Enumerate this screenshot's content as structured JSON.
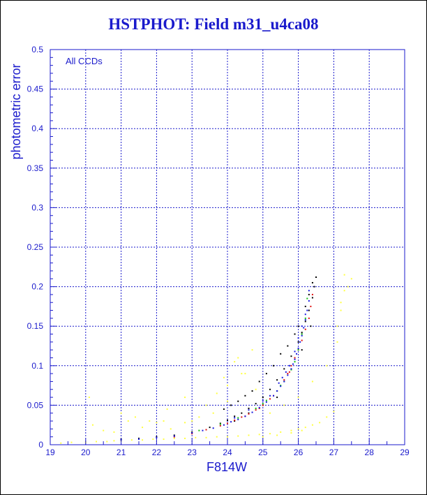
{
  "title": "HSTPHOT: Field m31_u4ca08",
  "colors": {
    "axis": "#1a1acc",
    "grid": "#1a1acc",
    "frame": "#000000",
    "black": "#000000",
    "red": "#e01010",
    "green": "#10c010",
    "blue": "#1818e0",
    "yellow": "#ffff40"
  },
  "chart_data": {
    "type": "scatter",
    "title": "HSTPHOT: Field m31_u4ca08",
    "xlabel": "F814W",
    "ylabel": "photometric error",
    "xlim": [
      19,
      29
    ],
    "ylim": [
      0,
      0.5
    ],
    "xticks": [
      "19",
      "20",
      "21",
      "22",
      "23",
      "24",
      "25",
      "26",
      "27",
      "28",
      "29"
    ],
    "yticks": [
      "0",
      "0.05",
      "0.1",
      "0.15",
      "0.2",
      "0.25",
      "0.3",
      "0.35",
      "0.4",
      "0.45",
      "0.5"
    ],
    "grid": true,
    "annotation": "All CCDs",
    "series": [
      {
        "color": "yellow",
        "x": [
          19.3,
          19.6,
          20.0,
          20.3,
          20.6,
          20.8,
          21.0,
          21.3,
          21.6,
          21.9,
          22.2,
          22.5,
          22.8,
          23.1,
          23.4,
          23.7,
          24.0,
          24.3,
          24.6,
          24.9,
          25.2,
          25.5,
          25.8,
          26.0,
          26.2,
          26.4,
          26.6,
          26.8,
          27.0,
          20.2,
          20.5,
          20.8,
          21.2,
          21.6,
          22.0,
          22.4,
          22.8,
          23.2,
          23.6,
          24.0,
          24.4,
          24.8,
          25.2,
          25.6,
          26.0,
          26.4,
          26.8,
          27.1,
          27.2,
          27.3,
          27.3,
          27.4,
          27.2,
          27.1,
          21.0,
          21.4,
          21.8,
          22.3,
          22.8,
          23.4,
          23.9,
          24.2,
          24.5,
          24.7,
          23.7,
          24.0,
          25.0,
          25.4,
          25.8,
          26.1,
          20.1,
          22.2,
          23.0,
          24.3,
          27.5
        ],
        "y": [
          0.002,
          0.003,
          0.003,
          0.004,
          0.004,
          0.005,
          0.005,
          0.006,
          0.006,
          0.007,
          0.007,
          0.008,
          0.008,
          0.009,
          0.009,
          0.01,
          0.01,
          0.011,
          0.012,
          0.013,
          0.014,
          0.016,
          0.018,
          0.02,
          0.022,
          0.025,
          0.028,
          0.035,
          0.042,
          0.025,
          0.018,
          0.016,
          0.03,
          0.022,
          0.028,
          0.02,
          0.028,
          0.035,
          0.04,
          0.075,
          0.09,
          0.07,
          0.04,
          0.05,
          0.06,
          0.08,
          0.1,
          0.15,
          0.18,
          0.195,
          0.215,
          0.2,
          0.17,
          0.13,
          0.04,
          0.035,
          0.03,
          0.045,
          0.06,
          0.05,
          0.085,
          0.105,
          0.09,
          0.12,
          0.065,
          0.055,
          0.01,
          0.012,
          0.015,
          0.018,
          0.06,
          0.03,
          0.03,
          0.11,
          0.21
        ]
      },
      {
        "color": "black",
        "x": [
          21.0,
          21.5,
          22.0,
          22.5,
          23.0,
          23.5,
          23.8,
          24.0,
          24.2,
          24.4,
          24.6,
          24.8,
          25.0,
          25.2,
          25.4,
          25.6,
          25.8,
          26.0,
          26.1,
          26.2,
          26.3,
          26.4,
          26.45,
          26.5,
          23.9,
          24.1,
          24.3,
          24.5,
          24.7,
          24.9,
          25.1,
          25.3,
          25.5,
          25.7,
          25.9,
          26.0,
          26.2,
          26.3,
          26.4,
          24.2,
          24.6,
          25.0,
          25.4,
          25.8,
          26.1,
          26.35
        ],
        "y": [
          0.007,
          0.008,
          0.01,
          0.012,
          0.016,
          0.022,
          0.027,
          0.031,
          0.036,
          0.04,
          0.046,
          0.052,
          0.06,
          0.07,
          0.082,
          0.096,
          0.112,
          0.13,
          0.142,
          0.156,
          0.17,
          0.186,
          0.2,
          0.212,
          0.045,
          0.05,
          0.055,
          0.062,
          0.068,
          0.08,
          0.09,
          0.1,
          0.115,
          0.125,
          0.14,
          0.15,
          0.175,
          0.19,
          0.205,
          0.03,
          0.04,
          0.05,
          0.06,
          0.095,
          0.12,
          0.15
        ]
      },
      {
        "color": "red",
        "x": [
          22.5,
          23.0,
          23.4,
          23.8,
          24.0,
          24.2,
          24.4,
          24.6,
          24.8,
          25.0,
          25.2,
          25.4,
          25.6,
          25.7,
          25.8,
          25.9,
          26.0,
          26.1,
          26.2,
          26.3,
          26.35,
          26.4,
          24.5,
          24.9,
          25.3,
          25.75
        ],
        "y": [
          0.01,
          0.014,
          0.019,
          0.024,
          0.027,
          0.031,
          0.035,
          0.039,
          0.044,
          0.05,
          0.058,
          0.068,
          0.082,
          0.09,
          0.1,
          0.11,
          0.12,
          0.132,
          0.146,
          0.16,
          0.175,
          0.19,
          0.036,
          0.046,
          0.062,
          0.092
        ]
      },
      {
        "color": "green",
        "x": [
          23.2,
          23.8,
          24.3,
          24.8,
          25.1,
          25.4,
          25.6,
          25.8,
          26.0,
          26.1,
          26.2,
          26.25,
          25.0,
          25.5,
          25.9
        ],
        "y": [
          0.018,
          0.026,
          0.034,
          0.046,
          0.056,
          0.068,
          0.08,
          0.095,
          0.12,
          0.14,
          0.16,
          0.185,
          0.052,
          0.075,
          0.105
        ]
      },
      {
        "color": "blue",
        "x": [
          21.0,
          21.5,
          22.0,
          22.5,
          23.0,
          23.3,
          23.6,
          23.9,
          24.1,
          24.3,
          24.5,
          24.7,
          24.9,
          25.1,
          25.3,
          25.4,
          25.5,
          25.6,
          25.7,
          25.8,
          25.85,
          25.9,
          25.95,
          26.0,
          26.05,
          26.1,
          26.15,
          26.2,
          26.25,
          26.3,
          24.2,
          24.6,
          25.0,
          25.2,
          25.45,
          25.65,
          25.75,
          25.9,
          26.0,
          26.2,
          26.3,
          26.1,
          25.55
        ],
        "y": [
          0.006,
          0.007,
          0.009,
          0.011,
          0.015,
          0.018,
          0.021,
          0.025,
          0.029,
          0.032,
          0.036,
          0.041,
          0.047,
          0.054,
          0.062,
          0.068,
          0.074,
          0.08,
          0.088,
          0.096,
          0.102,
          0.108,
          0.115,
          0.122,
          0.13,
          0.138,
          0.148,
          0.158,
          0.17,
          0.182,
          0.034,
          0.044,
          0.056,
          0.062,
          0.078,
          0.092,
          0.1,
          0.118,
          0.135,
          0.165,
          0.195,
          0.15,
          0.085
        ]
      }
    ]
  }
}
